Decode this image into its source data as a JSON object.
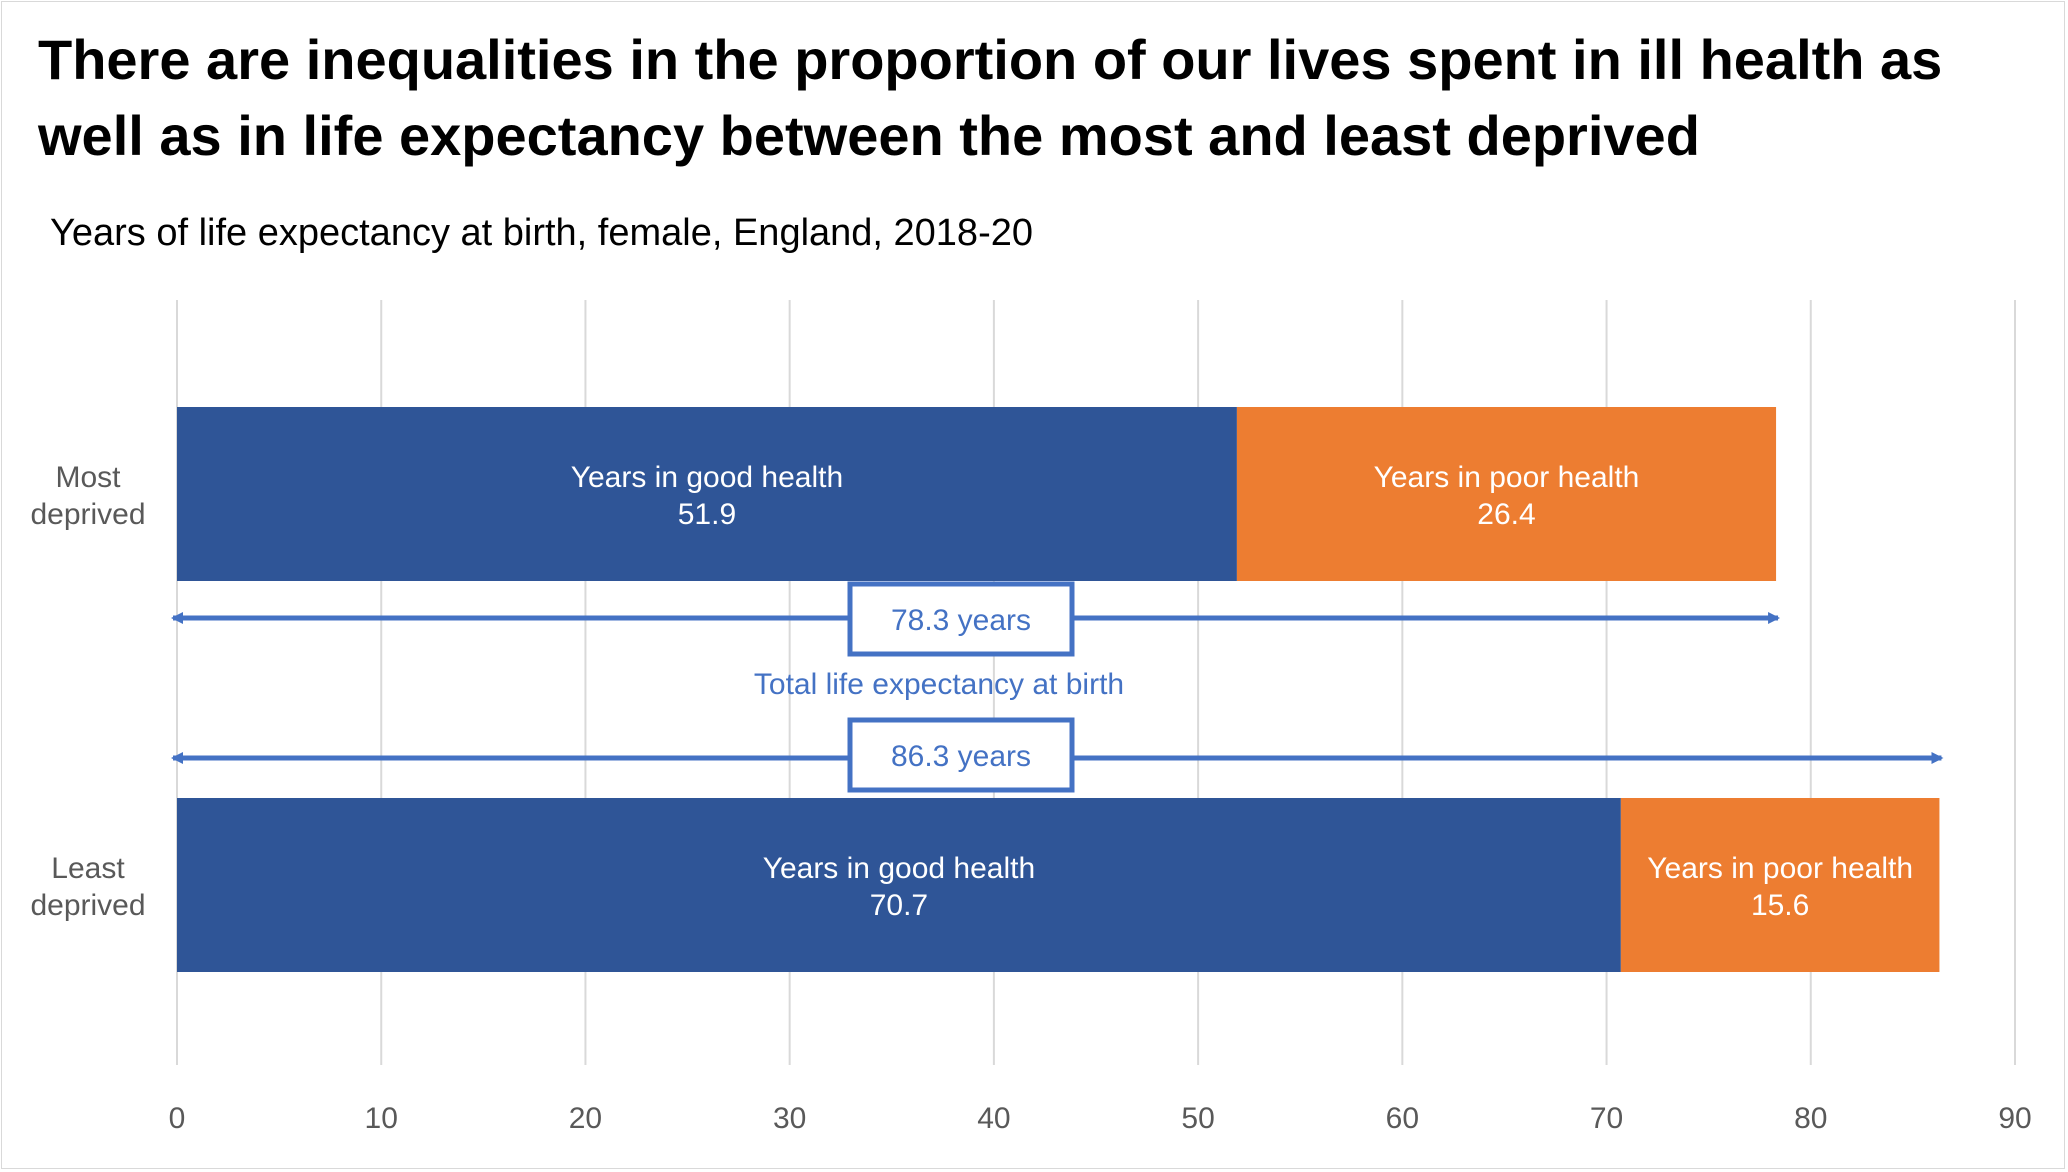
{
  "title": "There are inequalities in the proportion of our lives spent in ill health as well as in life expectancy between the most and least deprived",
  "subtitle": "Years of life expectancy at birth, female, England, 2018-20",
  "colors": {
    "good": "#2f5597",
    "poor": "#ed7d31",
    "annotation": "#4472c4",
    "grid": "#d9d9d9",
    "axis_text": "#595959"
  },
  "chart_data": {
    "type": "bar",
    "orientation": "horizontal",
    "stacked": true,
    "xlim": [
      0,
      90
    ],
    "x_ticks": [
      0,
      10,
      20,
      30,
      40,
      50,
      60,
      70,
      80,
      90
    ],
    "grid": true,
    "categories": [
      [
        "Most",
        "deprived"
      ],
      [
        "Least",
        "deprived"
      ]
    ],
    "series": [
      {
        "name": "Years in good health",
        "values": [
          51.9,
          70.7
        ],
        "color": "#2f5597"
      },
      {
        "name": "Years in poor health",
        "values": [
          26.4,
          15.6
        ],
        "color": "#ed7d31"
      }
    ],
    "totals": [
      {
        "value": 78.3,
        "label": "78.3 years"
      },
      {
        "value": 86.3,
        "label": "86.3 years"
      }
    ],
    "annotation": "Total life expectancy at birth"
  }
}
